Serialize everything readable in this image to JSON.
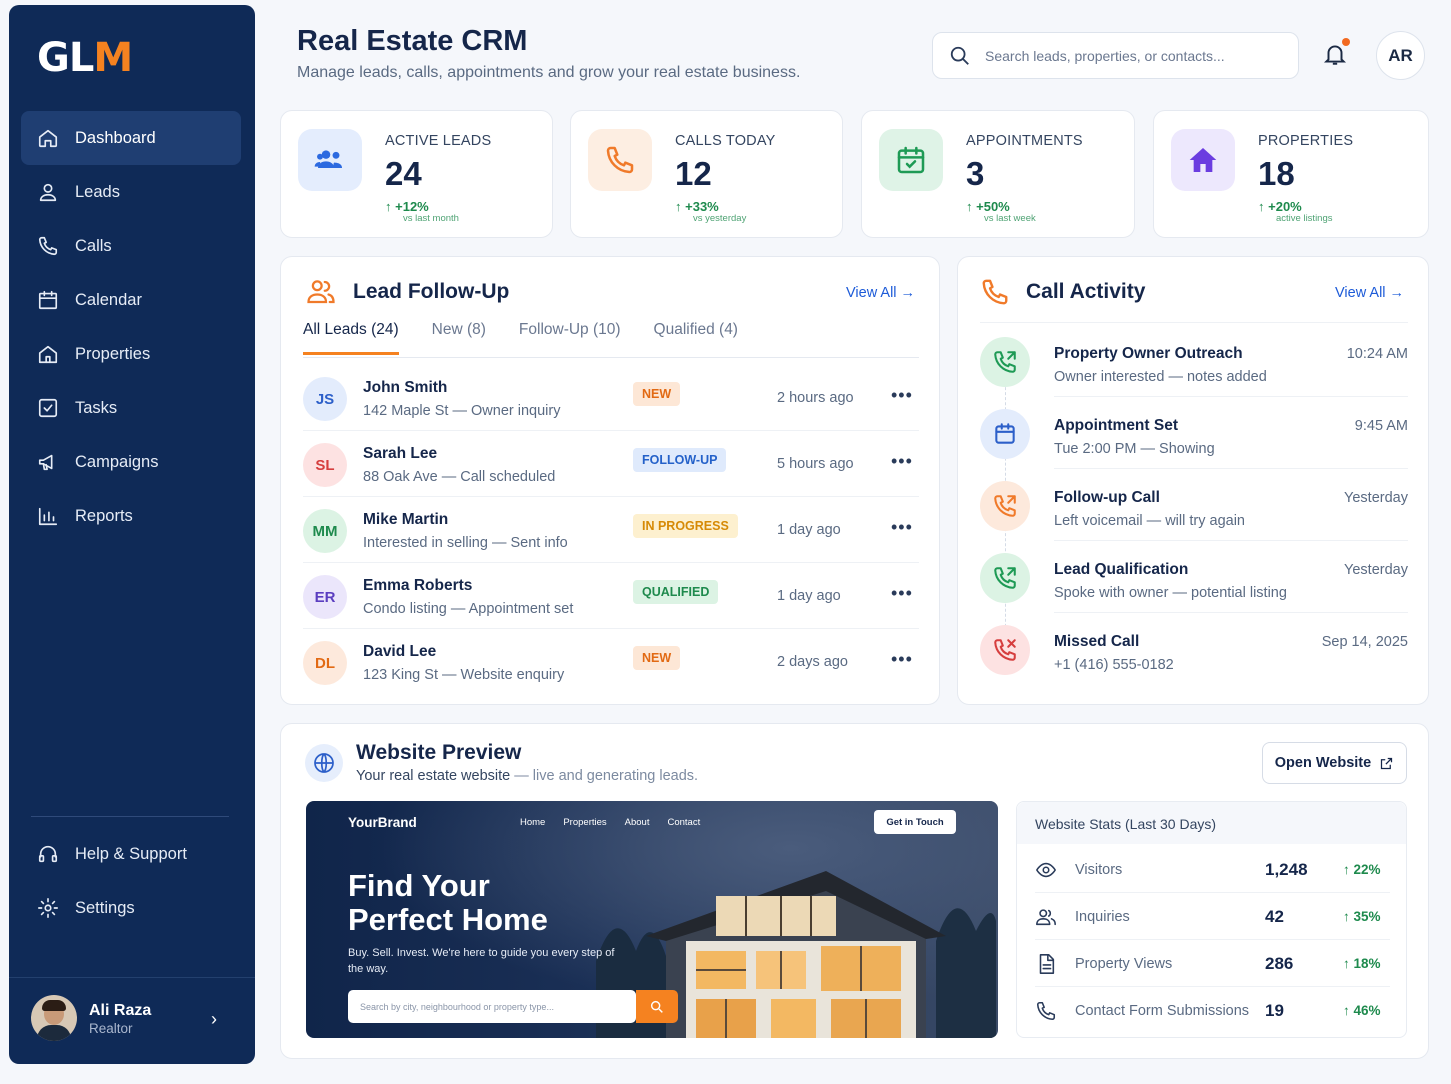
{
  "logo": {
    "text_a": "GL",
    "text_b": "M"
  },
  "sidebar": {
    "items": [
      {
        "label": "Dashboard"
      },
      {
        "label": "Leads"
      },
      {
        "label": "Calls"
      },
      {
        "label": "Calendar"
      },
      {
        "label": "Properties"
      },
      {
        "label": "Tasks"
      },
      {
        "label": "Campaigns"
      },
      {
        "label": "Reports"
      }
    ],
    "bottom": [
      {
        "label": "Help & Support"
      },
      {
        "label": "Settings"
      }
    ],
    "user": {
      "name": "Ali Raza",
      "role": "Realtor"
    }
  },
  "header": {
    "title": "Real Estate CRM",
    "subtitle": "Manage leads, calls, appointments and grow your real estate business.",
    "search_placeholder": "Search leads, properties, or contacts...",
    "user_initials": "AR"
  },
  "stats": [
    {
      "label": "ACTIVE LEADS",
      "value": "24",
      "change": "+12%",
      "compare": "vs last month"
    },
    {
      "label": "CALLS TODAY",
      "value": "12",
      "change": "+33%",
      "compare": "vs yesterday"
    },
    {
      "label": "APPOINTMENTS",
      "value": "3",
      "change": "+50%",
      "compare": "vs last week"
    },
    {
      "label": "PROPERTIES",
      "value": "18",
      "change": "+20%",
      "compare": "active listings"
    }
  ],
  "lead_followup": {
    "title": "Lead Follow-Up",
    "view_all": "View All",
    "tabs": [
      {
        "label": "All Leads (24)"
      },
      {
        "label": "New (8)"
      },
      {
        "label": "Follow-Up (10)"
      },
      {
        "label": "Qualified (4)"
      }
    ],
    "leads": [
      {
        "initials": "JS",
        "name": "John Smith",
        "desc": "142 Maple St — Owner inquiry",
        "status": "NEW",
        "time": "2 hours ago"
      },
      {
        "initials": "SL",
        "name": "Sarah Lee",
        "desc": "88 Oak Ave — Call scheduled",
        "status": "FOLLOW-UP",
        "time": "5 hours ago"
      },
      {
        "initials": "MM",
        "name": "Mike Martin",
        "desc": "Interested in selling — Sent info",
        "status": "IN PROGRESS",
        "time": "1 day ago"
      },
      {
        "initials": "ER",
        "name": "Emma Roberts",
        "desc": "Condo listing — Appointment set",
        "status": "QUALIFIED",
        "time": "1 day ago"
      },
      {
        "initials": "DL",
        "name": "David Lee",
        "desc": "123 King St — Website enquiry",
        "status": "NEW",
        "time": "2 days ago"
      }
    ],
    "more": "•••"
  },
  "call_activity": {
    "title": "Call Activity",
    "view_all": "View All",
    "items": [
      {
        "title": "Property Owner Outreach",
        "desc": "Owner interested — notes added",
        "time": "10:24 AM"
      },
      {
        "title": "Appointment Set",
        "desc": "Tue 2:00 PM — Showing",
        "time": "9:45 AM"
      },
      {
        "title": "Follow-up Call",
        "desc": "Left voicemail — will try again",
        "time": "Yesterday"
      },
      {
        "title": "Lead Qualification",
        "desc": "Spoke with owner — potential listing",
        "time": "Yesterday"
      },
      {
        "title": "Missed Call",
        "desc": "+1 (416) 555-0182",
        "time": "Sep 14, 2025"
      }
    ]
  },
  "website_preview": {
    "title": "Website Preview",
    "subtitle_a": "Your real estate website",
    "subtitle_b": " — live and generating leads.",
    "open_button": "Open Website",
    "site": {
      "brand": "YourBrand",
      "nav": [
        {
          "label": "Home"
        },
        {
          "label": "Properties"
        },
        {
          "label": "About"
        },
        {
          "label": "Contact"
        }
      ],
      "cta": "Get in Touch",
      "headline": "Find Your Perfect Home",
      "tagline": "Buy. Sell. Invest. We're here to guide you every step of the way.",
      "search_placeholder": "Search by city, neighbourhood or property type..."
    },
    "stats_title": "Website Stats (Last 30 Days)",
    "stats": [
      {
        "label": "Visitors",
        "value": "1,248",
        "change": "22%"
      },
      {
        "label": "Inquiries",
        "value": "42",
        "change": "35%"
      },
      {
        "label": "Property Views",
        "value": "286",
        "change": "18%"
      },
      {
        "label": "Contact Form Submissions",
        "value": "19",
        "change": "46%"
      }
    ]
  },
  "colors": {
    "sidebar": "#0f2a57",
    "accent": "#f58220",
    "link": "#1d5bd8",
    "positive": "#1e8a4d"
  }
}
